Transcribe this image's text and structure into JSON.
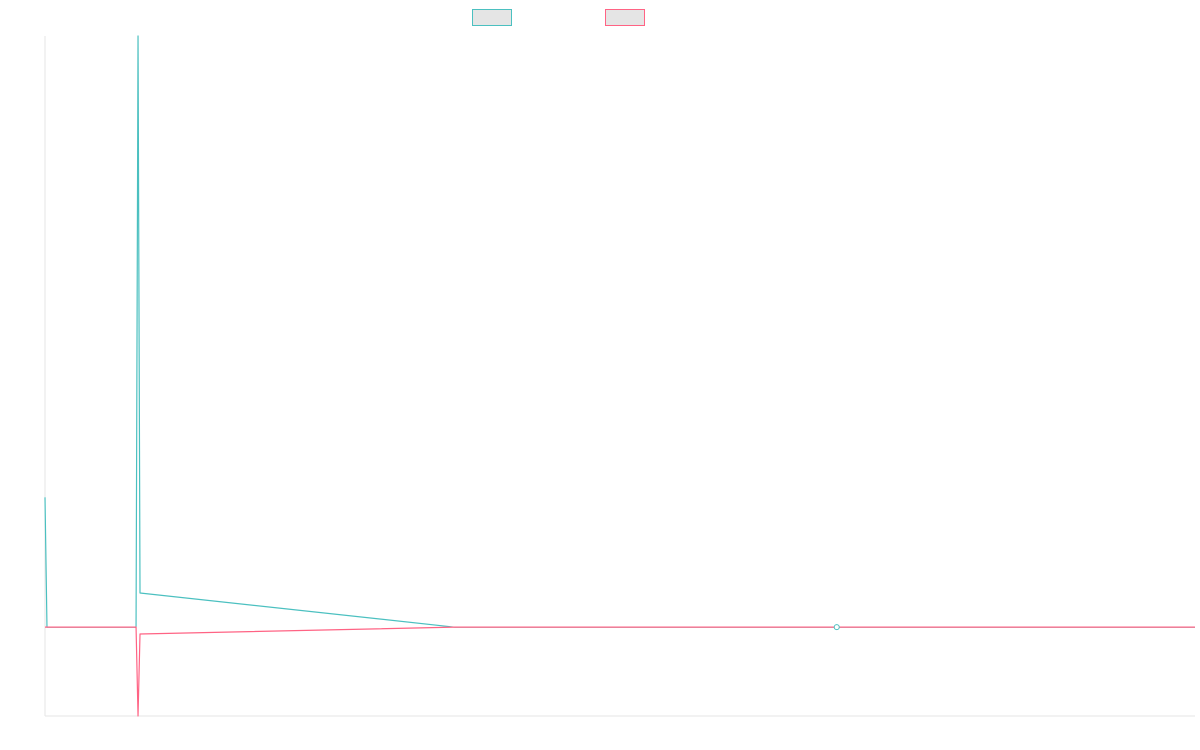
{
  "chart_data": {
    "type": "line",
    "title": "",
    "xlabel": "",
    "ylabel": "",
    "grid": false,
    "legend_position": "top",
    "x": [
      0,
      1,
      45,
      46,
      47,
      48,
      207,
      208,
      400,
      581
    ],
    "ylim": [
      -2.6,
      17.3
    ],
    "series": [
      {
        "name": "",
        "color": "#4bc0c0",
        "fill": "#e5e5e5",
        "values": [
          3.8,
          0,
          0,
          0,
          17.3,
          1.0,
          0,
          0,
          0,
          0
        ],
        "highlight_index": 8
      },
      {
        "name": "",
        "color": "#ff6384",
        "fill": "#e5e5e5",
        "values": [
          0,
          0,
          0,
          0,
          -2.6,
          -0.2,
          0,
          0,
          0,
          0
        ]
      }
    ]
  }
}
